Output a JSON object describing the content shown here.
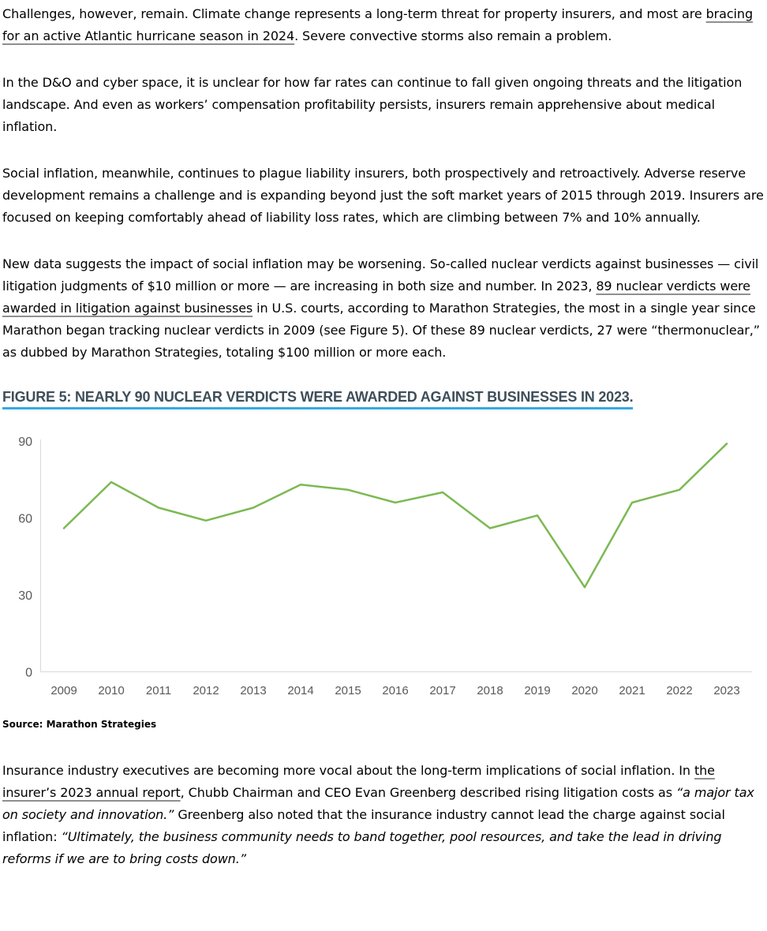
{
  "colors": {
    "body_text": "#000000",
    "link_underline": "#8f8f8f",
    "figure_title_text": "#3e4e5a",
    "figure_title_underline": "#36a9e1",
    "chart_line": "#7cb953",
    "chart_axis": "#d9d9d9",
    "chart_tick_labels": "#595959"
  },
  "paragraphs": [
    {
      "name": "paragraph-climate-challenges",
      "segments": [
        {
          "style": "plain",
          "text": "Challenges, however, remain. Climate change represents a long-term threat for property insurers, and most are "
        },
        {
          "style": "link",
          "name": "hurricane-season-link",
          "text": "bracing for an active Atlantic hurricane season in 2024"
        },
        {
          "style": "plain",
          "text": ". Severe convective storms also remain a problem."
        }
      ]
    },
    {
      "name": "paragraph-do-cyber",
      "segments": [
        {
          "style": "plain",
          "text": "In the D&O and cyber space, it is unclear for how far rates can continue to fall given ongoing threats and the litigation landscape. And even as workers’ compensation profitability persists, insurers remain apprehensive about medical inflation."
        }
      ]
    },
    {
      "name": "paragraph-social-inflation",
      "segments": [
        {
          "style": "plain",
          "text": "Social inflation, meanwhile, continues to plague liability insurers, both prospectively and retroactively. Adverse reserve development remains a challenge and is expanding beyond just the soft market years of 2015 through 2019. Insurers are focused on keeping comfortably ahead of liability loss rates, which are climbing between 7% and 10% annually."
        }
      ]
    },
    {
      "name": "paragraph-nuclear-verdicts",
      "segments": [
        {
          "style": "plain",
          "text": "New data suggests the impact of social inflation may be worsening. So-called nuclear verdicts against businesses — civil litigation judgments of $10 million or more — are increasing in both size and number. In 2023, "
        },
        {
          "style": "link",
          "name": "nuclear-verdicts-link",
          "text": "89 nuclear verdicts were awarded in litigation against businesses"
        },
        {
          "style": "plain",
          "text": " in U.S. courts, according to Marathon Strategies, the most in a single year since Marathon began tracking nuclear verdicts in 2009 (see Figure 5). Of these 89 nuclear verdicts, 27 were “thermonuclear,” as dubbed by Marathon Strategies, totaling $100 million or more each."
        }
      ]
    },
    {
      "name": "paragraph-executives",
      "segments": [
        {
          "style": "plain",
          "text": "Insurance industry executives are becoming more vocal about the long-term implications of social inflation. In "
        },
        {
          "style": "link",
          "name": "annual-report-link",
          "text": "the insurer’s 2023 annual report"
        },
        {
          "style": "plain",
          "text": ", Chubb Chairman and CEO Evan Greenberg described rising litigation costs as "
        },
        {
          "style": "italic",
          "text": "“a major tax on society and innovation.”"
        },
        {
          "style": "plain",
          "text": " Greenberg also noted that the insurance industry cannot lead the charge against social inflation: "
        },
        {
          "style": "italic",
          "text": "“Ultimately, the business community needs to band together, pool resources, and take the lead in driving reforms if we are to bring costs down.”"
        }
      ]
    }
  ],
  "chart_data": {
    "type": "line",
    "title": "FIGURE 5: NEARLY 90 NUCLEAR VERDICTS WERE AWARDED AGAINST BUSINESSES IN 2023.",
    "source": "Source: Marathon Strategies",
    "x": [
      "2009",
      "2010",
      "2011",
      "2012",
      "2013",
      "2014",
      "2015",
      "2016",
      "2017",
      "2018",
      "2019",
      "2020",
      "2021",
      "2022",
      "2023"
    ],
    "series": [
      {
        "name": "Nuclear verdicts awarded against businesses",
        "values": [
          56,
          74,
          64,
          59,
          64,
          73,
          71,
          66,
          70,
          56,
          61,
          33,
          66,
          71,
          89
        ]
      }
    ],
    "xlabel": "",
    "ylabel": "",
    "ylim": [
      0,
      90
    ],
    "yticks": [
      0,
      30,
      60,
      90
    ],
    "grid": false,
    "legend": "none",
    "line_color": "#7cb953",
    "axis_color": "#d9d9d9",
    "tick_label_color": "#595959"
  }
}
